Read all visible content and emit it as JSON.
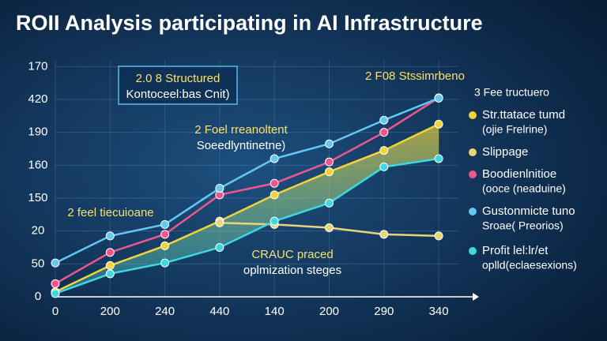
{
  "chart_data": {
    "type": "line",
    "title": "ROII Analysis participating in AI Infrastructure",
    "categories": [
      "0",
      "200",
      "240",
      "440",
      "140",
      "200",
      "290",
      "340"
    ],
    "ylim": [
      0,
      7.2
    ],
    "yticks": [
      {
        "value": 0,
        "label": "0"
      },
      {
        "value": 1,
        "label": "50"
      },
      {
        "value": 2,
        "label": "20"
      },
      {
        "value": 3,
        "label": "150"
      },
      {
        "value": 4,
        "label": "160"
      },
      {
        "value": 5,
        "label": "190"
      },
      {
        "value": 6,
        "label": "420"
      },
      {
        "value": 7,
        "label": "170"
      }
    ],
    "grid": true,
    "legend": "right",
    "series": [
      {
        "name": "Str.ttatace tumd",
        "note": "(ojie Frelrine)",
        "color": "#f2d33a",
        "values": [
          0.15,
          0.95,
          1.55,
          2.3,
          3.1,
          3.8,
          4.45,
          5.25
        ]
      },
      {
        "name": "Slippage",
        "color": "#e8d47a",
        "values": [
          null,
          null,
          null,
          2.25,
          2.2,
          2.1,
          1.9,
          1.85
        ]
      },
      {
        "name": "Boodienlnitioe",
        "note": "(ooce (neaduine)",
        "color": "#f0568c",
        "values": [
          0.4,
          1.35,
          1.9,
          3.1,
          3.45,
          4.1,
          5.0,
          6.05
        ]
      },
      {
        "name": "Gustonmicte tuno",
        "note": "Sroae( Preorios)",
        "color": "#62c8f2",
        "values": [
          1.03,
          1.85,
          2.2,
          3.3,
          4.2,
          4.65,
          5.37,
          6.04
        ]
      },
      {
        "name": "Profit lel:lr/et",
        "note": "oplld(eclaesexions)",
        "color": "#3fd8e0",
        "values": [
          0.1,
          0.7,
          1.03,
          1.5,
          2.3,
          2.85,
          3.95,
          4.2
        ]
      }
    ],
    "legend_heading": "3 Fee tructuero",
    "annotations": [
      {
        "lines": [
          "2.0 8 Structured",
          "Kontoceel:bas Cnit)"
        ]
      },
      {
        "lines": [
          "2 Foel rreanoltent",
          "Soeedlyntinetne)"
        ]
      },
      {
        "lines": [
          "2 F08 Stssimrbeno"
        ]
      },
      {
        "lines": [
          "2 feel tiecuioane"
        ]
      },
      {
        "lines": [
          "CRAUC praced",
          "oplmization steges"
        ]
      }
    ]
  }
}
